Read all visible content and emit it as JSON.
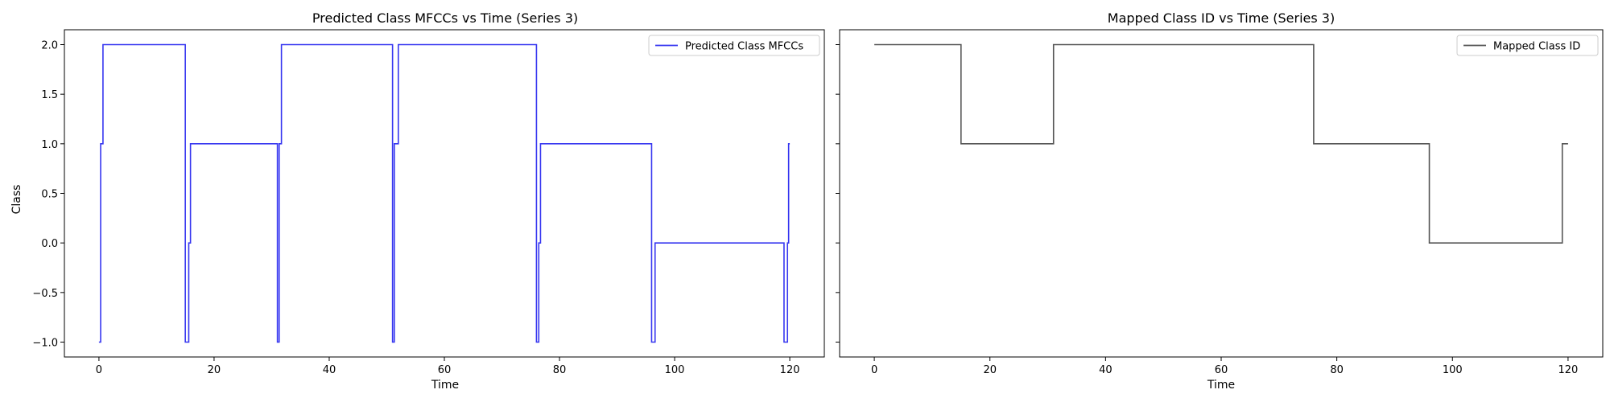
{
  "chart_data": [
    {
      "type": "line",
      "title": "Predicted Class MFCCs vs Time (Series 3)",
      "xlabel": "Time",
      "ylabel": "Class",
      "xlim": [
        -6,
        126
      ],
      "ylim": [
        -1.15,
        2.15
      ],
      "xticks": [
        0,
        20,
        40,
        60,
        80,
        100,
        120
      ],
      "yticks": [
        -1.0,
        -0.5,
        0.0,
        0.5,
        1.0,
        1.5,
        2.0
      ],
      "ytick_labels": [
        "−1.0",
        "−0.5",
        "0.0",
        "0.5",
        "1.0",
        "1.5",
        "2.0"
      ],
      "legend_position": "top-right",
      "series": [
        {
          "name": "Predicted Class MFCCs",
          "color": "#3636f0",
          "step": true,
          "points": [
            [
              0,
              -1
            ],
            [
              0.3,
              -1
            ],
            [
              0.3,
              1
            ],
            [
              0.7,
              1
            ],
            [
              0.7,
              2
            ],
            [
              15,
              2
            ],
            [
              15,
              -1
            ],
            [
              15.6,
              -1
            ],
            [
              15.6,
              0
            ],
            [
              15.9,
              0
            ],
            [
              15.9,
              1
            ],
            [
              31,
              1
            ],
            [
              31,
              -1
            ],
            [
              31.3,
              -1
            ],
            [
              31.3,
              1
            ],
            [
              31.7,
              1
            ],
            [
              31.7,
              2
            ],
            [
              51,
              2
            ],
            [
              51,
              -1
            ],
            [
              51.3,
              -1
            ],
            [
              51.3,
              1
            ],
            [
              52,
              1
            ],
            [
              52,
              2
            ],
            [
              76,
              2
            ],
            [
              76,
              -1
            ],
            [
              76.4,
              -1
            ],
            [
              76.4,
              0
            ],
            [
              76.7,
              0
            ],
            [
              76.7,
              1
            ],
            [
              96,
              1
            ],
            [
              96,
              -1
            ],
            [
              96.6,
              -1
            ],
            [
              96.6,
              0
            ],
            [
              119,
              0
            ],
            [
              119,
              -1
            ],
            [
              119.6,
              -1
            ],
            [
              119.6,
              0
            ],
            [
              119.8,
              0
            ],
            [
              119.8,
              1
            ],
            [
              120,
              1
            ]
          ]
        }
      ]
    },
    {
      "type": "line",
      "title": "Mapped Class ID vs Time (Series 3)",
      "xlabel": "Time",
      "ylabel": "",
      "xlim": [
        -6,
        126
      ],
      "ylim": [
        -1.15,
        2.15
      ],
      "xticks": [
        0,
        20,
        40,
        60,
        80,
        100,
        120
      ],
      "yticks": [
        -1.0,
        -0.5,
        0.0,
        0.5,
        1.0,
        1.5,
        2.0
      ],
      "shared_y": true,
      "legend_position": "top-right",
      "series": [
        {
          "name": "Mapped Class ID",
          "color": "#555555",
          "step": true,
          "points": [
            [
              0,
              2
            ],
            [
              15,
              2
            ],
            [
              15,
              1
            ],
            [
              31,
              1
            ],
            [
              31,
              2
            ],
            [
              76,
              2
            ],
            [
              76,
              1
            ],
            [
              96,
              1
            ],
            [
              96,
              0
            ],
            [
              119,
              0
            ],
            [
              119,
              1
            ],
            [
              120,
              1
            ]
          ]
        }
      ]
    }
  ]
}
